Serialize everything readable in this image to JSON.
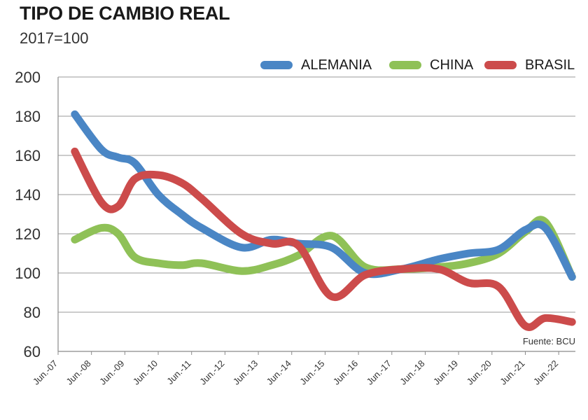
{
  "header": {
    "title": "TIPO DE CAMBIO REAL",
    "subtitle": "2017=100"
  },
  "source_note": "Fuente: BCU",
  "chart_data": {
    "type": "line",
    "title": "TIPO DE CAMBIO REAL",
    "subtitle": "2017=100",
    "xlabel": "",
    "ylabel": "",
    "ylim": [
      60,
      200
    ],
    "yticks": [
      200,
      180,
      160,
      140,
      120,
      100,
      80,
      60
    ],
    "grid": true,
    "legend_position": "top-right",
    "categories": [
      "Jun.-07",
      "Jun.-08",
      "Jun.-09",
      "Jun.-10",
      "Jun.-11",
      "Jun.-12",
      "Jun.-13",
      "Jun.-14",
      "Jun.-15",
      "Jun.-16",
      "Jun.-17",
      "Jun.-18",
      "Jun.-19",
      "Jun.-20",
      "Jun.-21",
      "Jun.-22"
    ],
    "x": [
      7.5,
      8.3,
      8.8,
      9.3,
      10,
      10.7,
      11.3,
      12.5,
      13.4,
      14.2,
      15.2,
      16.2,
      17.3,
      18.4,
      19.3,
      20.2,
      21,
      21.6,
      22.4
    ],
    "series": [
      {
        "name": "ALEMANIA",
        "color": "#4a86c5",
        "values": [
          181,
          163,
          159,
          156,
          140,
          130,
          123,
          113,
          117,
          115,
          113,
          100,
          102,
          107,
          110,
          112,
          122,
          123,
          98
        ]
      },
      {
        "name": "CHINA",
        "color": "#8fc157",
        "values": [
          117,
          123,
          120,
          108,
          105,
          104,
          105,
          101,
          104,
          109,
          119,
          103,
          102,
          103,
          105,
          110,
          121,
          126,
          98
        ]
      },
      {
        "name": "BRASIL",
        "color": "#cc4b4b",
        "values": [
          162,
          136,
          134,
          148,
          150,
          146,
          138,
          120,
          115,
          114,
          88,
          99,
          102,
          102,
          95,
          93,
          73,
          77,
          75
        ]
      }
    ]
  }
}
